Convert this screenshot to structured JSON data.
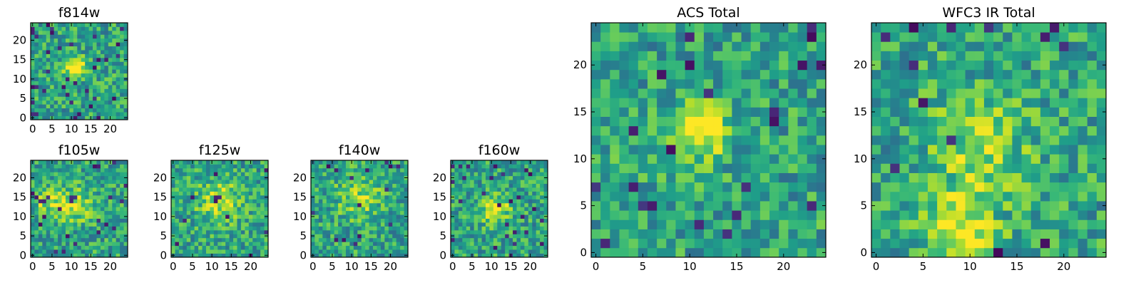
{
  "figure": {
    "colormap": "viridis",
    "colormap_stops": [
      "#440154",
      "#3b528b",
      "#21918c",
      "#5ec962",
      "#fde725"
    ]
  },
  "chart_data": [
    {
      "id": "f814w",
      "type": "heatmap",
      "title": "f814w",
      "grid_size": 25,
      "xticks": [
        0,
        5,
        10,
        15,
        20
      ],
      "yticks": [
        0,
        5,
        10,
        15,
        20
      ],
      "xlim": [
        -0.5,
        24.5
      ],
      "ylim": [
        -0.5,
        24.5
      ],
      "seed": 11,
      "blobs": [
        {
          "cx": 11,
          "cy": 13,
          "r": 1.8,
          "a": 0.55
        }
      ],
      "dark_fraction": 0.05
    },
    {
      "id": "f105w",
      "type": "heatmap",
      "title": "f105w",
      "grid_size": 25,
      "xticks": [
        0,
        5,
        10,
        15,
        20
      ],
      "yticks": [
        0,
        5,
        10,
        15,
        20
      ],
      "xlim": [
        -0.5,
        24.5
      ],
      "ylim": [
        -0.5,
        24.5
      ],
      "seed": 23,
      "blobs": [
        {
          "cx": 11,
          "cy": 13,
          "r": 3.0,
          "a": 0.35
        },
        {
          "cx": 4,
          "cy": 14,
          "r": 2.5,
          "a": 0.3
        }
      ],
      "dark_fraction": 0.03
    },
    {
      "id": "f125w",
      "type": "heatmap",
      "title": "f125w",
      "grid_size": 25,
      "xticks": [
        0,
        5,
        10,
        15,
        20
      ],
      "yticks": [
        0,
        5,
        10,
        15,
        20
      ],
      "xlim": [
        -0.5,
        24.5
      ],
      "ylim": [
        -0.5,
        24.5
      ],
      "seed": 37,
      "blobs": [
        {
          "cx": 12,
          "cy": 14,
          "r": 4.0,
          "a": 0.3
        }
      ],
      "dark_fraction": 0.02
    },
    {
      "id": "f140w",
      "type": "heatmap",
      "title": "f140w",
      "grid_size": 25,
      "xticks": [
        0,
        5,
        10,
        15,
        20
      ],
      "yticks": [
        0,
        5,
        10,
        15,
        20
      ],
      "xlim": [
        -0.5,
        24.5
      ],
      "ylim": [
        -0.5,
        24.5
      ],
      "seed": 53,
      "blobs": [
        {
          "cx": 12,
          "cy": 15,
          "r": 4.0,
          "a": 0.25
        }
      ],
      "dark_fraction": 0.03
    },
    {
      "id": "f160w",
      "type": "heatmap",
      "title": "f160w",
      "grid_size": 25,
      "xticks": [
        0,
        5,
        10,
        15,
        20
      ],
      "yticks": [
        0,
        5,
        10,
        15,
        20
      ],
      "xlim": [
        -0.5,
        24.5
      ],
      "ylim": [
        -0.5,
        24.5
      ],
      "seed": 71,
      "blobs": [
        {
          "cx": 11,
          "cy": 12,
          "r": 2.5,
          "a": 0.4
        }
      ],
      "dark_fraction": 0.04
    },
    {
      "id": "acs",
      "type": "heatmap",
      "title": "ACS Total",
      "grid_size": 25,
      "xticks": [
        0,
        5,
        10,
        15,
        20
      ],
      "yticks": [
        0,
        5,
        10,
        15,
        20
      ],
      "xlim": [
        -0.5,
        24.5
      ],
      "ylim": [
        -0.5,
        24.5
      ],
      "seed": 89,
      "blobs": [
        {
          "cx": 11,
          "cy": 13,
          "r": 2.0,
          "a": 0.55
        }
      ],
      "dark_fraction": 0.03
    },
    {
      "id": "wfc3",
      "type": "heatmap",
      "title": "WFC3 IR Total",
      "grid_size": 25,
      "xticks": [
        0,
        5,
        10,
        15,
        20
      ],
      "yticks": [
        0,
        5,
        10,
        15,
        20
      ],
      "xlim": [
        -0.5,
        24.5
      ],
      "ylim": [
        -0.5,
        24.5
      ],
      "seed": 97,
      "blobs": [
        {
          "cx": 9,
          "cy": 2,
          "r": 2.5,
          "a": 0.45
        },
        {
          "cx": 11,
          "cy": 11,
          "r": 4.0,
          "a": 0.25
        }
      ],
      "dark_fraction": 0.02
    }
  ]
}
